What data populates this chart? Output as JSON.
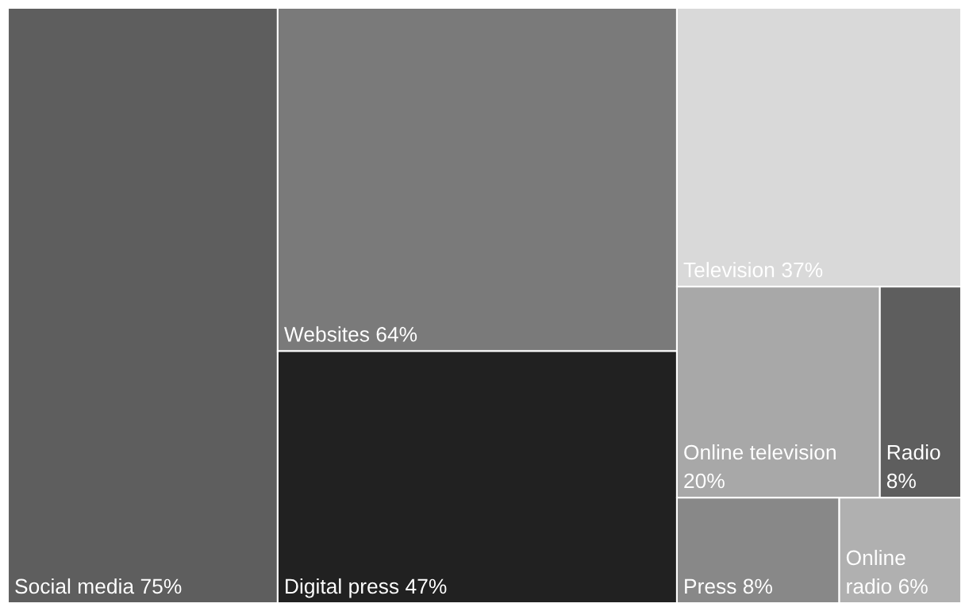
{
  "chart_data": {
    "type": "other",
    "categories": [
      "Social media",
      "Websites",
      "Digital press",
      "Television",
      "Online television",
      "Radio",
      "Press",
      "Online radio"
    ],
    "values": [
      75,
      64,
      47,
      37,
      20,
      8,
      8,
      6
    ],
    "value_labels": [
      "75%",
      "64%",
      "47%",
      "37%",
      "20%",
      "8%",
      "8%",
      "6%"
    ],
    "colors": [
      "#5e5e5e",
      "#7a7a7a",
      "#212121",
      "#d9d9d9",
      "#a8a8a8",
      "#5e5e5e",
      "#888888",
      "#b0b0b0"
    ]
  }
}
